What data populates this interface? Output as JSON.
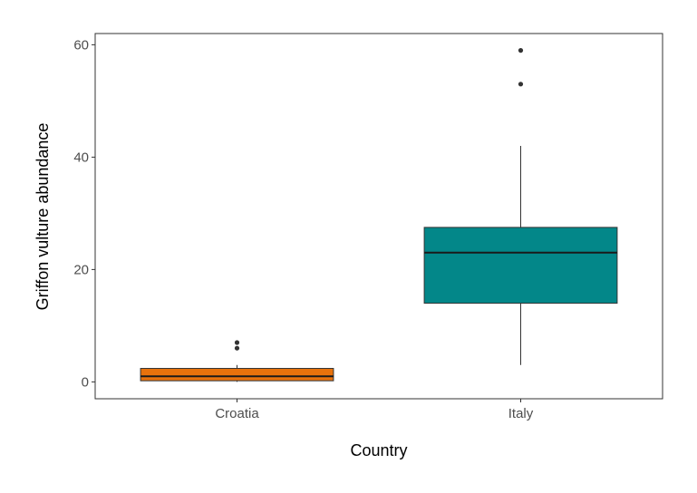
{
  "chart_data": {
    "type": "boxplot",
    "title": "",
    "xlabel": "Country",
    "ylabel": "Griffon vulture abundance",
    "categories": [
      "Croatia",
      "Italy"
    ],
    "ylim": [
      -3,
      62
    ],
    "yticks": [
      0,
      20,
      40,
      60
    ],
    "grid": false,
    "legend": "none",
    "boxes": [
      {
        "category": "Croatia",
        "whisker_low": 0,
        "q1": 0.2,
        "median": 1,
        "q3": 2.4,
        "whisker_high": 3,
        "outliers": [
          6,
          7
        ],
        "fill": "#e8720c"
      },
      {
        "category": "Italy",
        "whisker_low": 3,
        "q1": 14,
        "median": 23,
        "q3": 27.5,
        "whisker_high": 42,
        "outliers": [
          53,
          59
        ],
        "fill": "#038789"
      }
    ]
  }
}
